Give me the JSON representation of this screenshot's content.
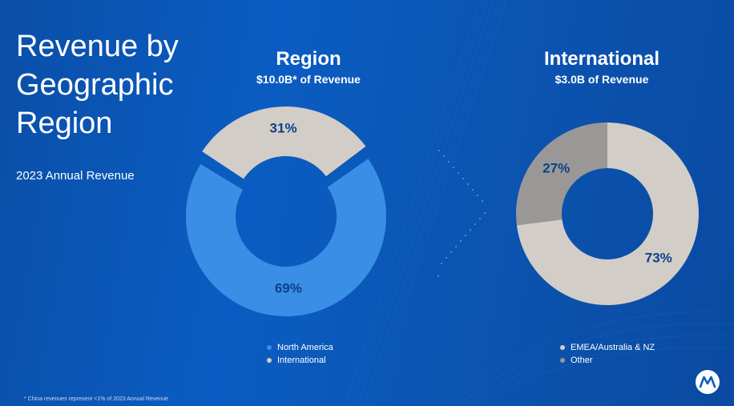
{
  "title": "Revenue by Geographic Region",
  "subtitle": "2023 Annual Revenue",
  "footnote": "* China revenues represent <1% of 2023 Annual Revenue",
  "colors": {
    "north_america": "#3b8ee6",
    "international": "#d2cdc6",
    "emea": "#d2cdc6",
    "other": "#9a9896",
    "label": "#0d3f8a"
  },
  "chart_data": [
    {
      "type": "pie",
      "title": "Region",
      "subtitle": "$10.0B* of Revenue",
      "categories": [
        "North America",
        "International"
      ],
      "values": [
        69,
        31
      ],
      "value_labels": [
        "69%",
        "31%"
      ],
      "donut": true,
      "legend": "bottom"
    },
    {
      "type": "pie",
      "title": "International",
      "subtitle": "$3.0B of Revenue",
      "categories": [
        "EMEA/Australia & NZ",
        "Other"
      ],
      "values": [
        73,
        27
      ],
      "value_labels": [
        "73%",
        "27%"
      ],
      "donut": true,
      "legend": "bottom"
    }
  ]
}
